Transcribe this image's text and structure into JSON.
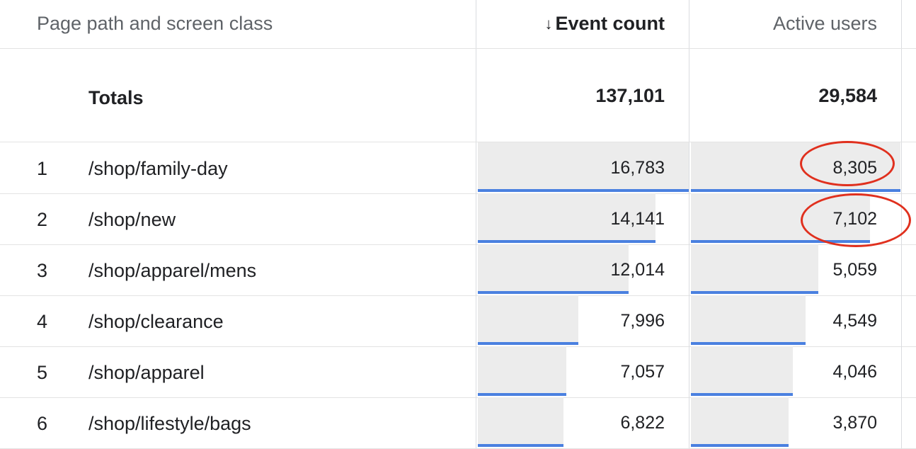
{
  "header": {
    "path_label": "Page path and screen class",
    "event_count_label": "Event count",
    "active_users_label": "Active users",
    "sort_icon": "arrow-down-icon"
  },
  "totals": {
    "label": "Totals",
    "event_count": "137,101",
    "active_users": "29,584"
  },
  "rows": [
    {
      "index": "1",
      "path": "/shop/family-day",
      "event_count": "16,783",
      "active_users": "8,305",
      "event_share": 1.0,
      "users_share": 1.0
    },
    {
      "index": "2",
      "path": "/shop/new",
      "event_count": "14,141",
      "active_users": "7,102",
      "event_share": 0.8426,
      "users_share": 0.8552
    },
    {
      "index": "3",
      "path": "/shop/apparel/mens",
      "event_count": "12,014",
      "active_users": "5,059",
      "event_share": 0.7158,
      "users_share": 0.6092
    },
    {
      "index": "4",
      "path": "/shop/clearance",
      "event_count": "7,996",
      "active_users": "4,549",
      "event_share": 0.4764,
      "users_share": 0.5478
    },
    {
      "index": "5",
      "path": "/shop/apparel",
      "event_count": "7,057",
      "active_users": "4,046",
      "event_share": 0.4205,
      "users_share": 0.4872
    },
    {
      "index": "6",
      "path": "/shop/lifestyle/bags",
      "event_count": "6,822",
      "active_users": "3,870",
      "event_share": 0.4065,
      "users_share": 0.466
    }
  ],
  "colors": {
    "bar_fill": "#ececec",
    "bar_underline": "#4a80e0",
    "annotation": "#e0301e"
  }
}
